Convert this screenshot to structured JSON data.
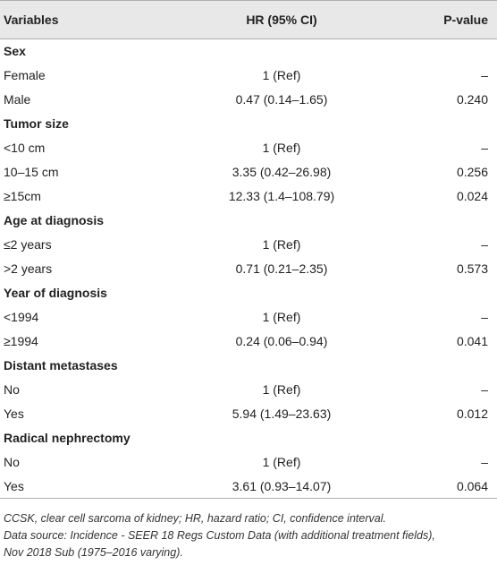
{
  "header": {
    "variables": "Variables",
    "hr": "HR (95% CI)",
    "pvalue": "P-value"
  },
  "rows": [
    {
      "label": "Sex",
      "hr": "",
      "p": "",
      "group": true
    },
    {
      "label": "Female",
      "hr": "1 (Ref)",
      "p": "–",
      "group": false
    },
    {
      "label": "Male",
      "hr": "0.47 (0.14–1.65)",
      "p": "0.240",
      "group": false
    },
    {
      "label": "Tumor size",
      "hr": "",
      "p": "",
      "group": true
    },
    {
      "label": "<10 cm",
      "hr": "1 (Ref)",
      "p": "–",
      "group": false
    },
    {
      "label": "10–15 cm",
      "hr": "3.35 (0.42–26.98)",
      "p": "0.256",
      "group": false
    },
    {
      "label": "≥15cm",
      "hr": "12.33 (1.4–108.79)",
      "p": "0.024",
      "group": false
    },
    {
      "label": "Age at diagnosis",
      "hr": "",
      "p": "",
      "group": true
    },
    {
      "label": "≤2 years",
      "hr": "1 (Ref)",
      "p": "–",
      "group": false
    },
    {
      "label": ">2 years",
      "hr": "0.71 (0.21–2.35)",
      "p": "0.573",
      "group": false
    },
    {
      "label": "Year of diagnosis",
      "hr": "",
      "p": "",
      "group": true
    },
    {
      "label": "<1994",
      "hr": "1 (Ref)",
      "p": "–",
      "group": false
    },
    {
      "label": "≥1994",
      "hr": "0.24 (0.06–0.94)",
      "p": "0.041",
      "group": false
    },
    {
      "label": "Distant metastases",
      "hr": "",
      "p": "",
      "group": true
    },
    {
      "label": "No",
      "hr": "1 (Ref)",
      "p": "–",
      "group": false
    },
    {
      "label": "Yes",
      "hr": "5.94 (1.49–23.63)",
      "p": "0.012",
      "group": false
    },
    {
      "label": "Radical nephrectomy",
      "hr": "",
      "p": "",
      "group": true
    },
    {
      "label": "No",
      "hr": "1 (Ref)",
      "p": "–",
      "group": false
    },
    {
      "label": "Yes",
      "hr": "3.61 (0.93–14.07)",
      "p": "0.064",
      "group": false
    }
  ],
  "footnotes": {
    "line1": "CCSK, clear cell sarcoma of kidney; HR, hazard ratio; CI, confidence interval.",
    "line2": "Data source: Incidence - SEER 18 Regs Custom Data (with additional treatment fields),",
    "line3": "Nov 2018 Sub (1975–2016 varying)."
  }
}
